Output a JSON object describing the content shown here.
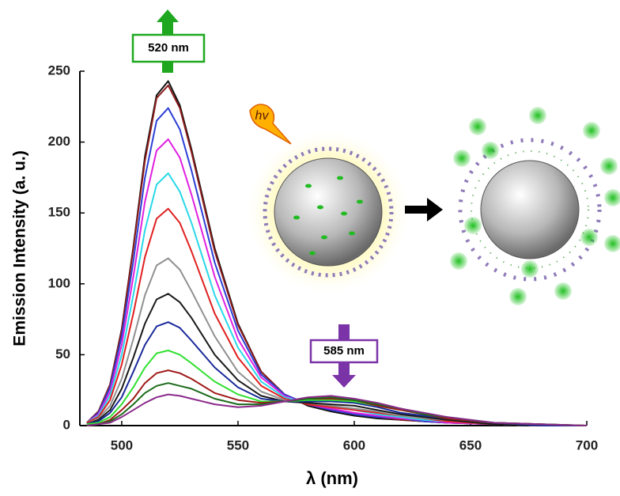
{
  "chart_data": {
    "type": "line",
    "x_label": "λ (nm)",
    "y_label": "Emission Intensity (a. u.)",
    "annotations": [
      "520 nm",
      "585 nm",
      "hv"
    ],
    "xlim": [
      482,
      700
    ],
    "ylim": [
      0,
      250
    ],
    "xticks": [
      500,
      550,
      600,
      650,
      700
    ],
    "yticks": [
      0,
      50,
      100,
      150,
      200,
      250
    ],
    "x": [
      485,
      490,
      495,
      500,
      505,
      510,
      515,
      520,
      525,
      530,
      540,
      550,
      560,
      570,
      580,
      590,
      600,
      610,
      620,
      630,
      640,
      660,
      680,
      700
    ],
    "series": [
      {
        "color": "#111111",
        "values": [
          2,
          10,
          29,
          68,
          126,
          190,
          233,
          243,
          226,
          195,
          125,
          72,
          38,
          22,
          14,
          10,
          7,
          5,
          4,
          3,
          2,
          1,
          0,
          0
        ]
      },
      {
        "color": "#8b1a1a",
        "values": [
          2,
          10,
          29,
          67,
          125,
          187,
          231,
          240,
          224,
          193,
          123,
          71,
          38,
          22,
          15,
          11,
          8,
          6,
          4,
          3,
          2,
          1,
          0,
          0
        ]
      },
      {
        "color": "#2b3fd6",
        "values": [
          2,
          9,
          27,
          63,
          116,
          175,
          215,
          224,
          209,
          180,
          115,
          67,
          36,
          22,
          15,
          11,
          8,
          6,
          5,
          3,
          2,
          1,
          0,
          0
        ]
      },
      {
        "color": "#e020e0",
        "values": [
          2,
          8,
          24,
          57,
          105,
          158,
          194,
          202,
          189,
          163,
          105,
          61,
          34,
          21,
          15,
          12,
          9,
          7,
          5,
          4,
          2,
          1,
          0,
          0
        ]
      },
      {
        "color": "#28d8e8",
        "values": [
          2,
          7,
          21,
          50,
          92,
          138,
          170,
          178,
          165,
          143,
          92,
          55,
          31,
          20,
          16,
          13,
          11,
          8,
          6,
          4,
          3,
          1,
          0,
          0
        ]
      },
      {
        "color": "#e02020",
        "values": [
          2,
          6,
          18,
          43,
          79,
          119,
          146,
          153,
          143,
          123,
          79,
          48,
          28,
          19,
          15,
          13,
          11,
          9,
          7,
          5,
          3,
          1,
          0,
          0
        ]
      },
      {
        "color": "#909090",
        "values": [
          1,
          5,
          14,
          33,
          61,
          92,
          113,
          118,
          110,
          95,
          63,
          38,
          24,
          18,
          16,
          14,
          12,
          10,
          7,
          5,
          4,
          1,
          0,
          0
        ]
      },
      {
        "color": "#1a1a1a",
        "values": [
          1,
          4,
          11,
          26,
          48,
          72,
          89,
          93,
          87,
          76,
          50,
          32,
          21,
          17,
          16,
          15,
          14,
          11,
          8,
          6,
          4,
          1,
          0,
          0
        ]
      },
      {
        "color": "#1a2a9a",
        "values": [
          1,
          3,
          9,
          20,
          38,
          57,
          70,
          73,
          69,
          60,
          41,
          27,
          19,
          17,
          17,
          17,
          16,
          13,
          9,
          7,
          5,
          2,
          0,
          0
        ]
      },
      {
        "color": "#30e030",
        "values": [
          1,
          2,
          6,
          15,
          27,
          41,
          51,
          53,
          50,
          44,
          31,
          22,
          17,
          17,
          18,
          18,
          17,
          14,
          11,
          8,
          5,
          2,
          1,
          0
        ]
      },
      {
        "color": "#a01818",
        "values": [
          0,
          1,
          4,
          11,
          19,
          30,
          37,
          39,
          37,
          33,
          23,
          18,
          16,
          17,
          19,
          19,
          18,
          14,
          11,
          8,
          5,
          2,
          1,
          0
        ]
      },
      {
        "color": "#1a6a1a",
        "values": [
          0,
          1,
          3,
          8,
          15,
          23,
          28,
          30,
          28,
          26,
          19,
          15,
          15,
          17,
          19,
          20,
          18,
          15,
          12,
          8,
          6,
          2,
          1,
          0
        ]
      },
      {
        "color": "#8a2a8a",
        "values": [
          0,
          1,
          2,
          6,
          11,
          16,
          20,
          22,
          21,
          19,
          15,
          13,
          14,
          17,
          20,
          21,
          19,
          16,
          12,
          9,
          6,
          2,
          1,
          0
        ]
      }
    ]
  }
}
